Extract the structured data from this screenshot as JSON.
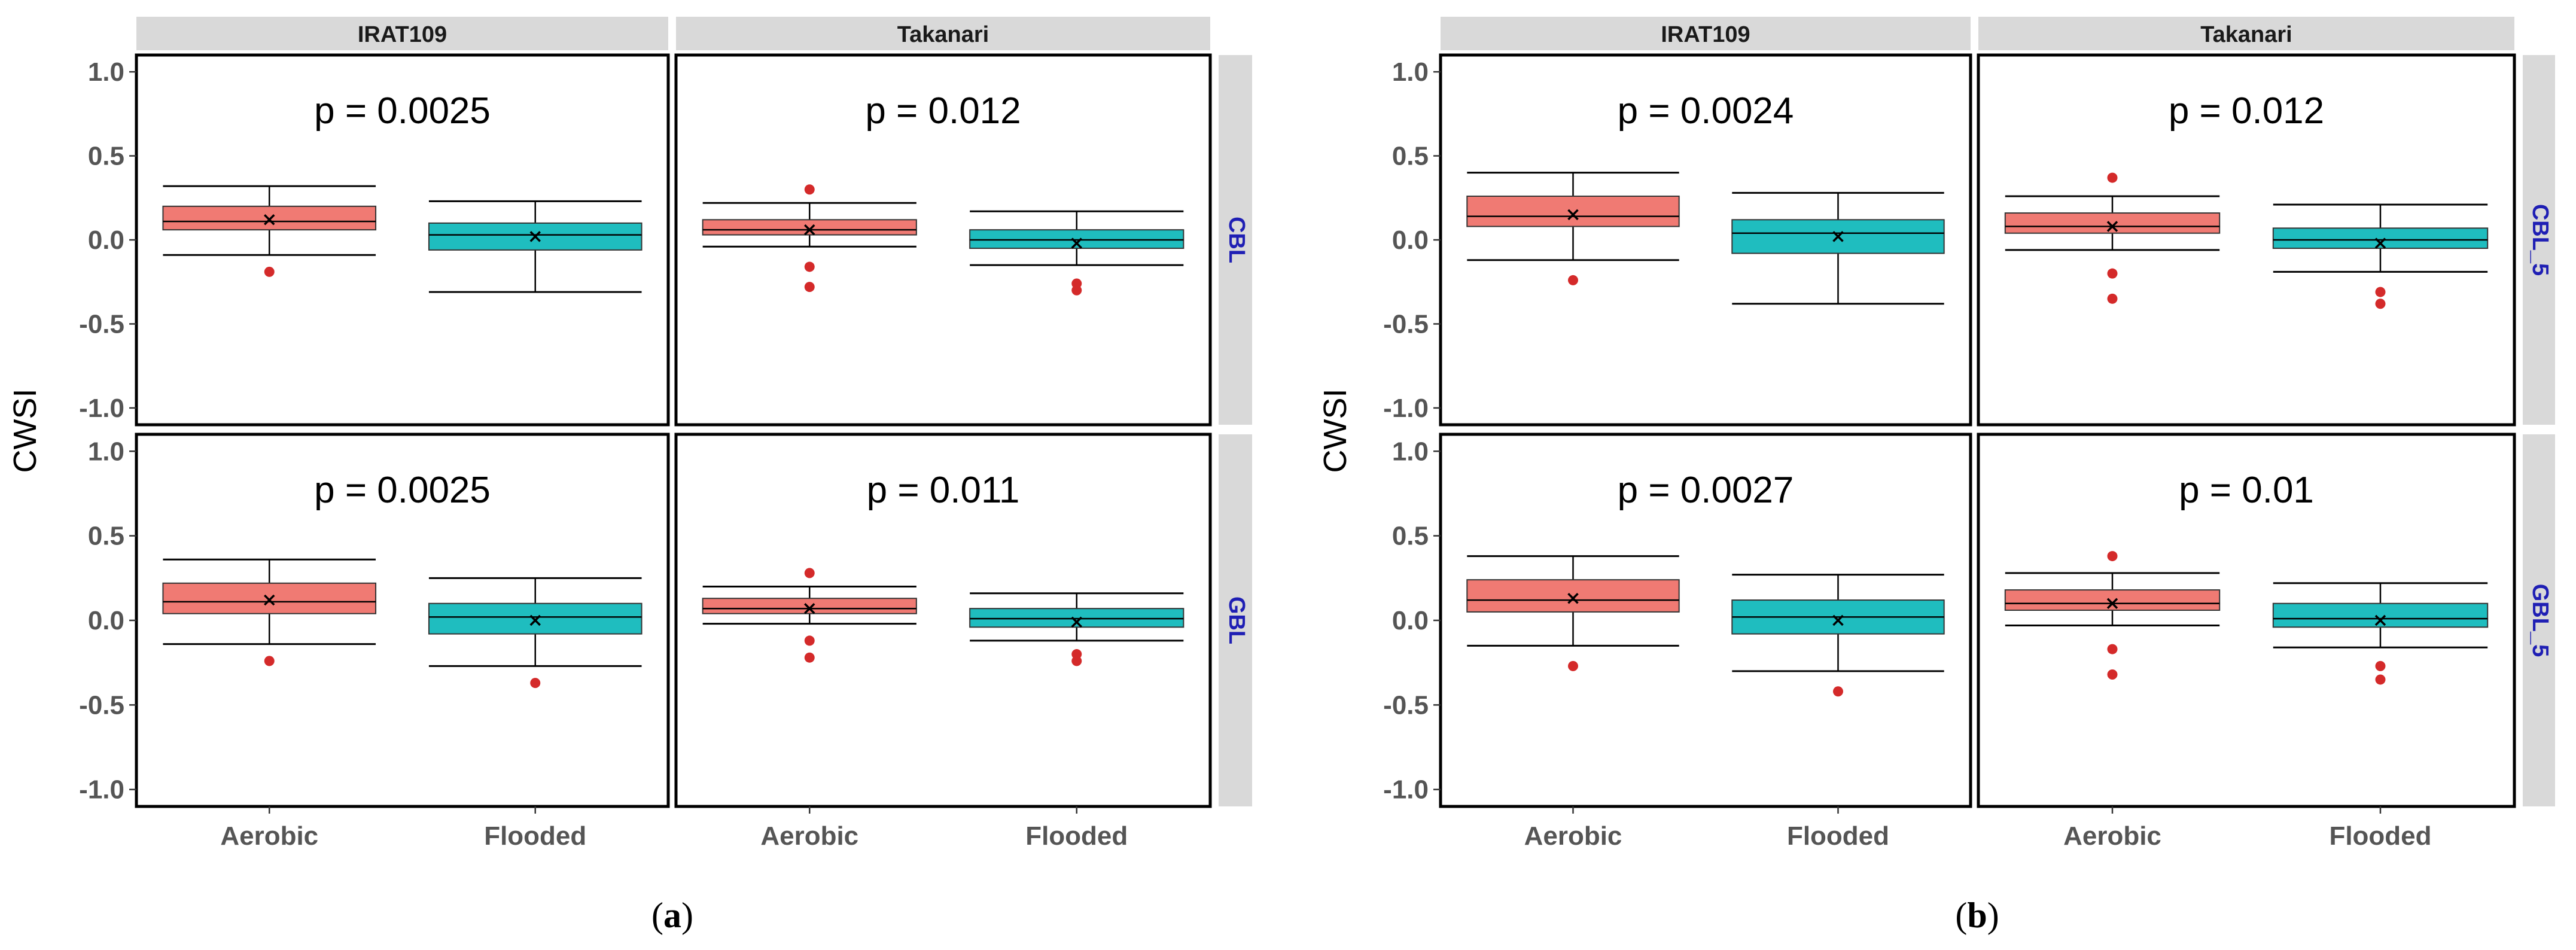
{
  "chart_data": [
    {
      "figure_label": "a",
      "type": "box",
      "ylabel": "CWSI",
      "ylim": [
        -1.1,
        1.1
      ],
      "yticks": [
        "1.0",
        "0.5",
        "0.0",
        "-0.5",
        "-1.0"
      ],
      "yticks_values": [
        1.0,
        0.5,
        0.0,
        -0.5,
        -1.0
      ],
      "categories": [
        "Aerobic",
        "Flooded"
      ],
      "columns": [
        "IRAT109",
        "Takanari"
      ],
      "rows": [
        "CBL",
        "GBL"
      ],
      "series_colors": {
        "Aerobic": "#f07a73",
        "Flooded": "#1fbdbf"
      },
      "panels": [
        {
          "row": "CBL",
          "column": "IRAT109",
          "p_label": "p = 0.0025",
          "boxes": [
            {
              "category": "Aerobic",
              "q1": 0.06,
              "median": 0.11,
              "q3": 0.2,
              "whisker_low": -0.09,
              "whisker_high": 0.32,
              "mean": 0.12,
              "outliers": [
                -0.19
              ]
            },
            {
              "category": "Flooded",
              "q1": -0.06,
              "median": 0.03,
              "q3": 0.1,
              "whisker_low": -0.31,
              "whisker_high": 0.23,
              "mean": 0.02,
              "outliers": []
            }
          ]
        },
        {
          "row": "CBL",
          "column": "Takanari",
          "p_label": "p = 0.012",
          "boxes": [
            {
              "category": "Aerobic",
              "q1": 0.03,
              "median": 0.06,
              "q3": 0.12,
              "whisker_low": -0.04,
              "whisker_high": 0.22,
              "mean": 0.06,
              "outliers": [
                0.3,
                -0.16,
                -0.28
              ]
            },
            {
              "category": "Flooded",
              "q1": -0.05,
              "median": 0.0,
              "q3": 0.06,
              "whisker_low": -0.15,
              "whisker_high": 0.17,
              "mean": -0.02,
              "outliers": [
                -0.26,
                -0.3
              ]
            }
          ]
        },
        {
          "row": "GBL",
          "column": "IRAT109",
          "p_label": "p = 0.0025",
          "boxes": [
            {
              "category": "Aerobic",
              "q1": 0.04,
              "median": 0.11,
              "q3": 0.22,
              "whisker_low": -0.14,
              "whisker_high": 0.36,
              "mean": 0.12,
              "outliers": [
                -0.24
              ]
            },
            {
              "category": "Flooded",
              "q1": -0.08,
              "median": 0.02,
              "q3": 0.1,
              "whisker_low": -0.27,
              "whisker_high": 0.25,
              "mean": 0.0,
              "outliers": [
                -0.37
              ]
            }
          ]
        },
        {
          "row": "GBL",
          "column": "Takanari",
          "p_label": "p = 0.011",
          "boxes": [
            {
              "category": "Aerobic",
              "q1": 0.04,
              "median": 0.07,
              "q3": 0.13,
              "whisker_low": -0.02,
              "whisker_high": 0.2,
              "mean": 0.07,
              "outliers": [
                0.28,
                -0.12,
                -0.22
              ]
            },
            {
              "category": "Flooded",
              "q1": -0.04,
              "median": 0.01,
              "q3": 0.07,
              "whisker_low": -0.12,
              "whisker_high": 0.16,
              "mean": -0.01,
              "outliers": [
                -0.2,
                -0.24
              ]
            }
          ]
        }
      ]
    },
    {
      "figure_label": "b",
      "type": "box",
      "ylabel": "CWSI",
      "ylim": [
        -1.1,
        1.1
      ],
      "yticks": [
        "1.0",
        "0.5",
        "0.0",
        "-0.5",
        "-1.0"
      ],
      "yticks_values": [
        1.0,
        0.5,
        0.0,
        -0.5,
        -1.0
      ],
      "categories": [
        "Aerobic",
        "Flooded"
      ],
      "columns": [
        "IRAT109",
        "Takanari"
      ],
      "rows": [
        "CBL_5",
        "GBL_5"
      ],
      "series_colors": {
        "Aerobic": "#f07a73",
        "Flooded": "#1fbdbf"
      },
      "panels": [
        {
          "row": "CBL_5",
          "column": "IRAT109",
          "p_label": "p = 0.0024",
          "boxes": [
            {
              "category": "Aerobic",
              "q1": 0.08,
              "median": 0.14,
              "q3": 0.26,
              "whisker_low": -0.12,
              "whisker_high": 0.4,
              "mean": 0.15,
              "outliers": [
                -0.24
              ]
            },
            {
              "category": "Flooded",
              "q1": -0.08,
              "median": 0.04,
              "q3": 0.12,
              "whisker_low": -0.38,
              "whisker_high": 0.28,
              "mean": 0.02,
              "outliers": []
            }
          ]
        },
        {
          "row": "CBL_5",
          "column": "Takanari",
          "p_label": "p = 0.012",
          "boxes": [
            {
              "category": "Aerobic",
              "q1": 0.04,
              "median": 0.08,
              "q3": 0.16,
              "whisker_low": -0.06,
              "whisker_high": 0.26,
              "mean": 0.08,
              "outliers": [
                0.37,
                -0.2,
                -0.35
              ]
            },
            {
              "category": "Flooded",
              "q1": -0.05,
              "median": 0.0,
              "q3": 0.07,
              "whisker_low": -0.19,
              "whisker_high": 0.21,
              "mean": -0.02,
              "outliers": [
                -0.31,
                -0.38
              ]
            }
          ]
        },
        {
          "row": "GBL_5",
          "column": "IRAT109",
          "p_label": "p = 0.0027",
          "boxes": [
            {
              "category": "Aerobic",
              "q1": 0.05,
              "median": 0.12,
              "q3": 0.24,
              "whisker_low": -0.15,
              "whisker_high": 0.38,
              "mean": 0.13,
              "outliers": [
                -0.27
              ]
            },
            {
              "category": "Flooded",
              "q1": -0.08,
              "median": 0.02,
              "q3": 0.12,
              "whisker_low": -0.3,
              "whisker_high": 0.27,
              "mean": 0.0,
              "outliers": [
                -0.42
              ]
            }
          ]
        },
        {
          "row": "GBL_5",
          "column": "Takanari",
          "p_label": "p = 0.01",
          "boxes": [
            {
              "category": "Aerobic",
              "q1": 0.06,
              "median": 0.1,
              "q3": 0.18,
              "whisker_low": -0.03,
              "whisker_high": 0.28,
              "mean": 0.1,
              "outliers": [
                0.38,
                -0.17,
                -0.32
              ]
            },
            {
              "category": "Flooded",
              "q1": -0.04,
              "median": 0.01,
              "q3": 0.1,
              "whisker_low": -0.16,
              "whisker_high": 0.22,
              "mean": 0.0,
              "outliers": [
                -0.27,
                -0.35
              ]
            }
          ]
        }
      ]
    }
  ]
}
